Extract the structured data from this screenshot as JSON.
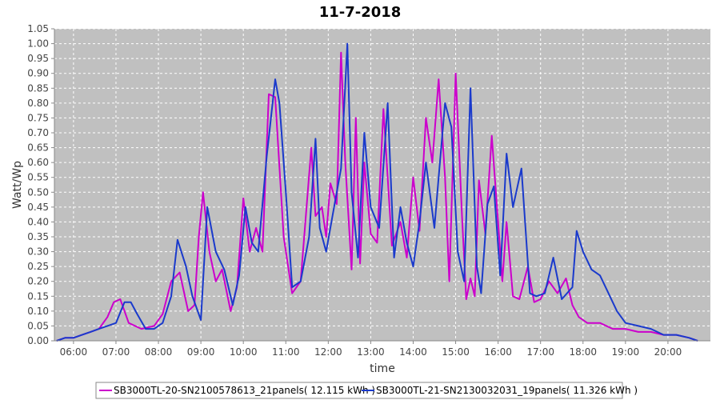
{
  "chart_data": {
    "type": "line",
    "title": "11-7-2018",
    "xlabel": "time",
    "ylabel": "Watt/Wp",
    "xlim": [
      5.55,
      21.0
    ],
    "ylim": [
      0,
      1.05
    ],
    "yticks": [
      0.0,
      0.05,
      0.1,
      0.15,
      0.2,
      0.25,
      0.3,
      0.35,
      0.4,
      0.45,
      0.5,
      0.55,
      0.6,
      0.65,
      0.7,
      0.75,
      0.8,
      0.85,
      0.9,
      0.95,
      1.0,
      1.05
    ],
    "ytick_labels": [
      "0.00",
      "0.05",
      "0.10",
      "0.15",
      "0.20",
      "0.25",
      "0.30",
      "0.35",
      "0.40",
      "0.45",
      "0.50",
      "0.55",
      "0.60",
      "0.65",
      "0.70",
      "0.75",
      "0.80",
      "0.85",
      "0.90",
      "0.95",
      "1.00",
      "1.05"
    ],
    "xticks": [
      6,
      7,
      8,
      9,
      10,
      11,
      12,
      13,
      14,
      15,
      16,
      17,
      18,
      19,
      20
    ],
    "xtick_labels": [
      "06:00",
      "07:00",
      "08:00",
      "09:00",
      "10:00",
      "11:00",
      "12:00",
      "13:00",
      "14:00",
      "15:00",
      "16:00",
      "17:00",
      "18:00",
      "19:00",
      "20:00"
    ],
    "grid": true,
    "plot_background": "#c0c0c0",
    "legend_position": "bottom",
    "series": [
      {
        "name": "SB3000TL-20-SN2100578613_21panels( 12.115 kWh )",
        "color": "#cc00cc",
        "x": [
          5.6,
          5.8,
          6.0,
          6.2,
          6.4,
          6.6,
          6.8,
          6.95,
          7.1,
          7.3,
          7.6,
          7.9,
          8.1,
          8.3,
          8.5,
          8.7,
          8.85,
          8.95,
          9.05,
          9.2,
          9.35,
          9.5,
          9.7,
          9.85,
          10.0,
          10.15,
          10.3,
          10.45,
          10.6,
          10.75,
          10.95,
          11.15,
          11.35,
          11.6,
          11.7,
          11.85,
          11.95,
          12.05,
          12.2,
          12.3,
          12.4,
          12.55,
          12.65,
          12.75,
          12.85,
          13.0,
          13.15,
          13.3,
          13.5,
          13.7,
          13.85,
          14.0,
          14.15,
          14.3,
          14.45,
          14.6,
          14.75,
          14.85,
          15.0,
          15.15,
          15.25,
          15.35,
          15.45,
          15.55,
          15.7,
          15.85,
          16.0,
          16.1,
          16.2,
          16.35,
          16.5,
          16.7,
          16.85,
          17.0,
          17.2,
          17.4,
          17.6,
          17.75,
          17.9,
          18.1,
          18.4,
          18.7,
          19.0,
          19.3,
          19.6,
          19.9,
          20.2,
          20.5,
          20.7
        ],
        "y": [
          0.0,
          0.01,
          0.01,
          0.02,
          0.03,
          0.04,
          0.08,
          0.13,
          0.14,
          0.06,
          0.04,
          0.05,
          0.09,
          0.2,
          0.23,
          0.1,
          0.12,
          0.35,
          0.5,
          0.3,
          0.2,
          0.24,
          0.1,
          0.18,
          0.48,
          0.3,
          0.38,
          0.3,
          0.83,
          0.82,
          0.35,
          0.16,
          0.2,
          0.65,
          0.42,
          0.45,
          0.35,
          0.53,
          0.46,
          0.97,
          0.6,
          0.24,
          0.75,
          0.26,
          0.6,
          0.36,
          0.33,
          0.78,
          0.32,
          0.4,
          0.28,
          0.55,
          0.37,
          0.75,
          0.6,
          0.88,
          0.55,
          0.2,
          0.9,
          0.42,
          0.14,
          0.21,
          0.15,
          0.54,
          0.36,
          0.69,
          0.4,
          0.2,
          0.4,
          0.15,
          0.14,
          0.25,
          0.13,
          0.14,
          0.2,
          0.16,
          0.21,
          0.12,
          0.08,
          0.06,
          0.06,
          0.04,
          0.04,
          0.03,
          0.03,
          0.02,
          0.02,
          0.01,
          0.0
        ]
      },
      {
        "name": "SB3000TL-21-SN2130032031_19panels( 11.326 kWh )",
        "color": "#1a3acc",
        "x": [
          5.6,
          5.8,
          6.0,
          6.2,
          6.4,
          6.6,
          6.8,
          7.0,
          7.2,
          7.35,
          7.5,
          7.7,
          7.9,
          8.1,
          8.3,
          8.45,
          8.65,
          8.8,
          9.0,
          9.15,
          9.35,
          9.55,
          9.75,
          9.9,
          10.05,
          10.2,
          10.35,
          10.55,
          10.75,
          10.85,
          11.0,
          11.15,
          11.35,
          11.55,
          11.7,
          11.8,
          11.95,
          12.1,
          12.3,
          12.45,
          12.55,
          12.7,
          12.85,
          13.0,
          13.2,
          13.4,
          13.55,
          13.7,
          13.85,
          14.0,
          14.15,
          14.3,
          14.5,
          14.6,
          14.75,
          14.9,
          15.05,
          15.2,
          15.35,
          15.5,
          15.6,
          15.75,
          15.9,
          16.05,
          16.2,
          16.35,
          16.55,
          16.75,
          16.9,
          17.1,
          17.3,
          17.5,
          17.75,
          17.85,
          18.0,
          18.2,
          18.4,
          18.6,
          18.8,
          19.0,
          19.3,
          19.6,
          19.9,
          20.2,
          20.5,
          20.7
        ],
        "y": [
          0.0,
          0.01,
          0.01,
          0.02,
          0.03,
          0.04,
          0.05,
          0.06,
          0.13,
          0.13,
          0.09,
          0.04,
          0.04,
          0.06,
          0.15,
          0.34,
          0.25,
          0.15,
          0.07,
          0.45,
          0.3,
          0.24,
          0.12,
          0.22,
          0.45,
          0.33,
          0.3,
          0.62,
          0.88,
          0.8,
          0.5,
          0.18,
          0.2,
          0.35,
          0.68,
          0.38,
          0.3,
          0.42,
          0.58,
          1.0,
          0.5,
          0.28,
          0.7,
          0.45,
          0.38,
          0.8,
          0.28,
          0.45,
          0.33,
          0.25,
          0.4,
          0.6,
          0.38,
          0.55,
          0.8,
          0.72,
          0.3,
          0.2,
          0.85,
          0.25,
          0.16,
          0.46,
          0.52,
          0.22,
          0.63,
          0.45,
          0.58,
          0.16,
          0.15,
          0.16,
          0.28,
          0.14,
          0.18,
          0.37,
          0.3,
          0.24,
          0.22,
          0.16,
          0.1,
          0.06,
          0.05,
          0.04,
          0.02,
          0.02,
          0.01,
          0.0
        ]
      }
    ]
  }
}
